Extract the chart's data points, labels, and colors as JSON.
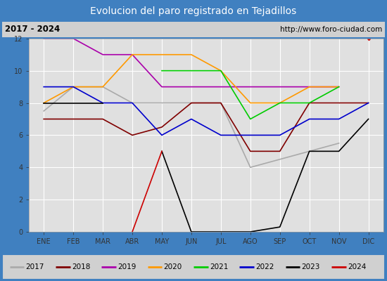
{
  "title": "Evolucion del paro registrado en Tejadillos",
  "subtitle_left": "2017 - 2024",
  "subtitle_right": "http://www.foro-ciudad.com",
  "months": [
    "ENE",
    "FEB",
    "MAR",
    "ABR",
    "MAY",
    "JUN",
    "JUL",
    "AGO",
    "SEP",
    "OCT",
    "NOV",
    "DIC"
  ],
  "ylim": [
    0,
    12
  ],
  "yticks": [
    0,
    2,
    4,
    6,
    8,
    10,
    12
  ],
  "series": {
    "2017": {
      "color": "#aaaaaa",
      "data": [
        7.5,
        9,
        9,
        8,
        8,
        8,
        8,
        4,
        4.5,
        5,
        5.5,
        null
      ]
    },
    "2018": {
      "color": "#800000",
      "data": [
        7,
        7,
        7,
        6,
        6.5,
        8,
        8,
        5,
        5,
        8,
        8,
        8
      ]
    },
    "2019": {
      "color": "#aa00aa",
      "data": [
        12,
        12,
        11,
        11,
        9,
        9,
        9,
        9,
        9,
        9,
        9,
        null
      ]
    },
    "2020": {
      "color": "#ff9900",
      "data": [
        8,
        9,
        9,
        11,
        11,
        11,
        10,
        8,
        8,
        9,
        9,
        null
      ]
    },
    "2021": {
      "color": "#00cc00",
      "data": [
        null,
        null,
        null,
        null,
        10,
        10,
        10,
        7,
        8,
        8,
        9,
        null
      ]
    },
    "2022": {
      "color": "#0000cc",
      "data": [
        9,
        9,
        8,
        8,
        6,
        7,
        6,
        6,
        6,
        7,
        7,
        8
      ]
    },
    "2023": {
      "color": "#000000",
      "data": [
        8,
        8,
        8,
        null,
        5,
        0,
        0,
        0,
        0.3,
        5,
        5,
        7
      ]
    },
    "2024": {
      "color": "#cc0000",
      "data": [
        null,
        null,
        null,
        0,
        5,
        null,
        null,
        null,
        null,
        null,
        null,
        12
      ]
    }
  },
  "legend_order": [
    "2017",
    "2018",
    "2019",
    "2020",
    "2021",
    "2022",
    "2023",
    "2024"
  ],
  "title_bg": "#4080c0",
  "title_color": "#ffffff",
  "subtitle_bg": "#d0d0d0",
  "plot_bg": "#e0e0e0",
  "grid_color": "#ffffff",
  "border_color": "#4080c0",
  "title_fontsize": 10,
  "tick_fontsize": 7,
  "legend_fontsize": 7.5
}
